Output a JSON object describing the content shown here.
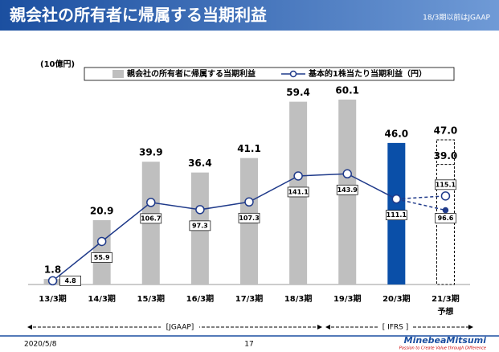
{
  "header": {
    "title": "親会社の所有者に帰属する当期利益",
    "note": "18/3期以前はJGAAP"
  },
  "chart_data": {
    "type": "bar",
    "unit_label": "(10億円)",
    "categories": [
      "13/3期",
      "14/3期",
      "15/3期",
      "16/3期",
      "17/3期",
      "18/3期",
      "19/3期",
      "20/3期",
      "21/3期"
    ],
    "forecast_label": "予想",
    "ylim": [
      0,
      70
    ],
    "y2lim": [
      0,
      280
    ],
    "series": [
      {
        "name": "親会社の所有者に帰属する当期利益",
        "type": "bar",
        "colors": [
          "#bfbfbf",
          "#bfbfbf",
          "#bfbfbf",
          "#bfbfbf",
          "#bfbfbf",
          "#bfbfbf",
          "#bfbfbf",
          "#0a4fa8",
          "#ffffff"
        ],
        "values": [
          1.8,
          20.9,
          39.9,
          36.4,
          41.1,
          59.4,
          60.1,
          46,
          47
        ],
        "value_labels": [
          "1.8",
          "20.9",
          "39.9",
          "36.4",
          "41.1",
          "59.4",
          "60.1",
          "46.0",
          "47.0"
        ],
        "forecast_inner": {
          "value": 39,
          "value_label": "39.0"
        }
      },
      {
        "name": "基本的1株当たり当期利益（円）",
        "type": "line",
        "axis": "y2",
        "color": "#1f3a8a",
        "values": [
          4.8,
          55.9,
          106.7,
          97.3,
          107.3,
          141.1,
          143.9,
          111.1,
          null
        ],
        "forecast": {
          "values": [
            115.1,
            96.6
          ]
        }
      }
    ],
    "periods": [
      "[JGAAP]",
      "[ IFRS ]"
    ]
  },
  "footer": {
    "date": "2020/5/8",
    "page": "17",
    "brand": "MinebeaMitsumi",
    "tagline": "Passion to Create Value through Difference"
  }
}
